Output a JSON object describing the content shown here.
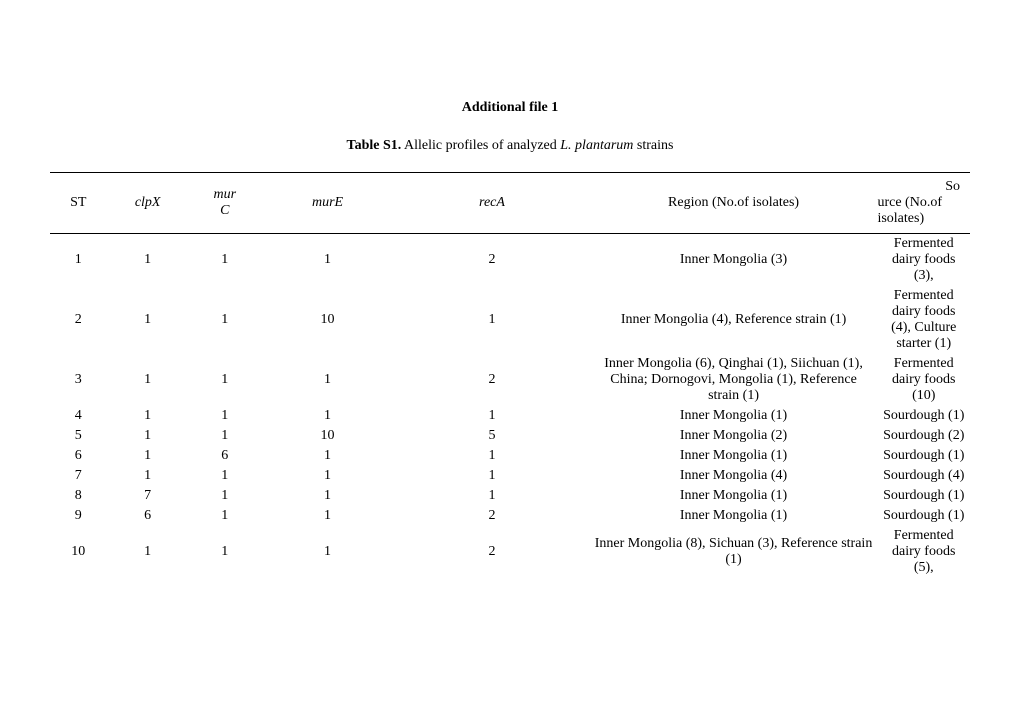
{
  "header": {
    "title": "Additional file 1",
    "caption_bold": "Table S1.",
    "caption_rest": " Allelic profiles of analyzed ",
    "caption_species": "L. plantarum",
    "caption_tail": " strains"
  },
  "columns": {
    "st": "ST",
    "clpx": "clpX",
    "murc_top": "mur",
    "murc_bot": "C",
    "mure": "murE",
    "reca": "recA",
    "region": "Region  (No.of isolates)",
    "source_top": "So",
    "source_mid": "urce (No.of isolates)"
  },
  "rows": [
    {
      "st": "1",
      "clpx": "1",
      "murc": "1",
      "mure": "1",
      "reca": "2",
      "region": "Inner Mongolia (3)",
      "source": "Fermented dairy foods (3),"
    },
    {
      "st": "2",
      "clpx": "1",
      "murc": "1",
      "mure": "10",
      "reca": "1",
      "region": "Inner Mongolia (4), Reference strain (1)",
      "source": "Fermented dairy foods (4), Culture starter (1)"
    },
    {
      "st": "3",
      "clpx": "1",
      "murc": "1",
      "mure": "1",
      "reca": "2",
      "region": "Inner Mongolia (6), Qinghai (1), Siichuan (1), China; Dornogovi, Mongolia (1), Reference strain (1)",
      "source": "Fermented dairy foods (10)"
    },
    {
      "st": "4",
      "clpx": "1",
      "murc": "1",
      "mure": "1",
      "reca": "1",
      "region": "Inner Mongolia (1)",
      "source": "Sourdough (1)"
    },
    {
      "st": "5",
      "clpx": "1",
      "murc": "1",
      "mure": "10",
      "reca": "5",
      "region": "Inner Mongolia (2)",
      "source": "Sourdough (2)"
    },
    {
      "st": "6",
      "clpx": "1",
      "murc": "6",
      "mure": "1",
      "reca": "1",
      "region": "Inner Mongolia (1)",
      "source": "Sourdough (1)"
    },
    {
      "st": "7",
      "clpx": "1",
      "murc": "1",
      "mure": "1",
      "reca": "1",
      "region": "Inner Mongolia (4)",
      "source": "Sourdough (4)"
    },
    {
      "st": "8",
      "clpx": "7",
      "murc": "1",
      "mure": "1",
      "reca": "1",
      "region": "Inner Mongolia (1)",
      "source": "Sourdough (1)"
    },
    {
      "st": "9",
      "clpx": "6",
      "murc": "1",
      "mure": "1",
      "reca": "2",
      "region": "Inner Mongolia (1)",
      "source": "Sourdough (1)"
    },
    {
      "st": "10",
      "clpx": "1",
      "murc": "1",
      "mure": "1",
      "reca": "2",
      "region": "Inner Mongolia (8), Sichuan (3), Reference strain (1)",
      "source": "Fermented dairy foods (5),"
    }
  ]
}
